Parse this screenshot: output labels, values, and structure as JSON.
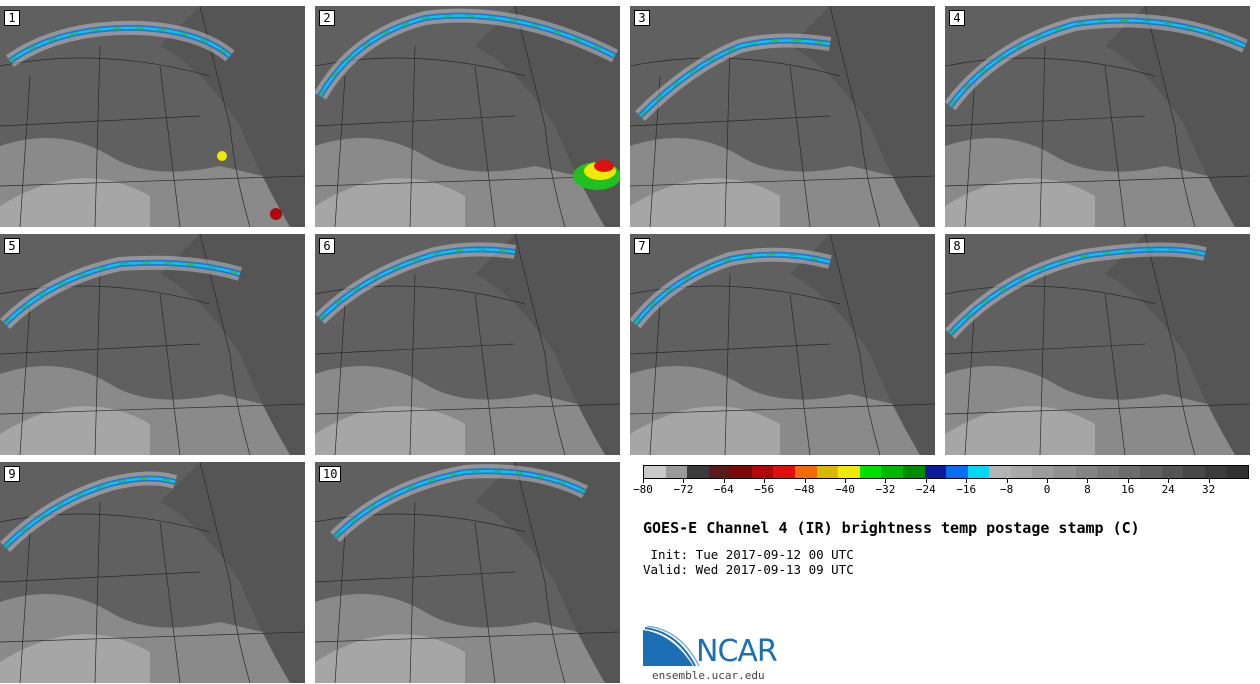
{
  "panels": [
    {
      "num": "1"
    },
    {
      "num": "2"
    },
    {
      "num": "3"
    },
    {
      "num": "4"
    },
    {
      "num": "5"
    },
    {
      "num": "6"
    },
    {
      "num": "7"
    },
    {
      "num": "8"
    },
    {
      "num": "9"
    },
    {
      "num": "10"
    }
  ],
  "colorbar": {
    "colors": [
      "#c8c8c8",
      "#9a9a9a",
      "#3a3a3a",
      "#5a1a1a",
      "#7a0a0a",
      "#b00808",
      "#e01010",
      "#f26a0c",
      "#d9b800",
      "#f0e800",
      "#00e000",
      "#00b800",
      "#008c00",
      "#0a1c9c",
      "#0a6cf0",
      "#00d8f0",
      "#b4b4b4",
      "#a8a8a8",
      "#9c9c9c",
      "#909090",
      "#848484",
      "#787878",
      "#6c6c6c",
      "#606060",
      "#545454",
      "#484848",
      "#3c3c3c",
      "#303030"
    ],
    "tick_labels": [
      "−80",
      "−72",
      "−64",
      "−56",
      "−48",
      "−40",
      "−32",
      "−24",
      "−16",
      "−8",
      "0",
      "8",
      "16",
      "24",
      "32"
    ],
    "tick_values": [
      -80,
      -72,
      -64,
      -56,
      -48,
      -40,
      -32,
      -24,
      -16,
      -8,
      0,
      8,
      16,
      24,
      32
    ],
    "range": [
      -80,
      40
    ]
  },
  "title": "GOES-E Channel 4 (IR) brightness temp postage stamp (C)",
  "init": " Init: Tue 2017-09-12 00 UTC",
  "valid": "Valid: Wed 2017-09-13 09 UTC",
  "logo": {
    "text": "NCAR",
    "color": "#1a6fb5"
  },
  "site": "ensemble.ucar.edu"
}
